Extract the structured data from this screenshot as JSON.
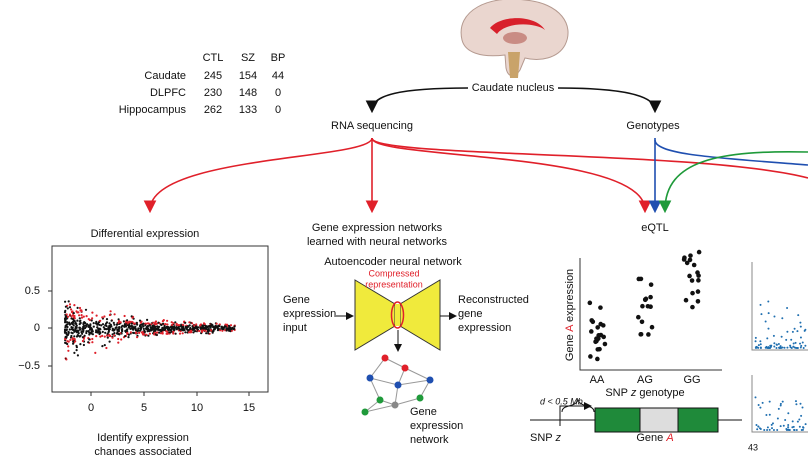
{
  "table": {
    "headers": [
      "CTL",
      "SZ",
      "BP"
    ],
    "rows": [
      [
        "Caudate",
        "245",
        "154",
        "44"
      ],
      [
        "DLPFC",
        "230",
        "148",
        "0"
      ],
      [
        "Hippocampus",
        "262",
        "133",
        "0"
      ]
    ]
  },
  "brain": {
    "label": "Caudate nucleus"
  },
  "branches": {
    "left": "RNA sequencing",
    "right": "Genotypes"
  },
  "differential": {
    "title": "Differential expression",
    "yticks": [
      "0.5",
      "0",
      "−0.5"
    ],
    "xticks": [
      "0",
      "5",
      "10",
      "15"
    ],
    "caption": [
      "Identify expression",
      "changes associated"
    ]
  },
  "network": {
    "title": [
      "Gene expression networks",
      "learned with neural networks"
    ],
    "autoencoder": "Autoencoder neural network",
    "compressed": [
      "Compressed",
      "representation"
    ],
    "input": [
      "Gene",
      "expression",
      "input"
    ],
    "output": [
      "Reconstructed",
      "gene",
      "expression"
    ],
    "graph": [
      "Gene",
      "expression",
      "network"
    ]
  },
  "eqtl": {
    "title": "eQTL",
    "y_label": [
      "Gene ",
      "A",
      " expression"
    ],
    "genotypes": [
      "AA",
      "AG",
      "GG"
    ],
    "x_label": [
      "SNP ",
      "z",
      " genotype"
    ],
    "distance": "d < 0.5 Mb",
    "snp": [
      "SNP ",
      "z"
    ],
    "gene": [
      "Gene ",
      "A"
    ],
    "right_tick": "43"
  }
}
